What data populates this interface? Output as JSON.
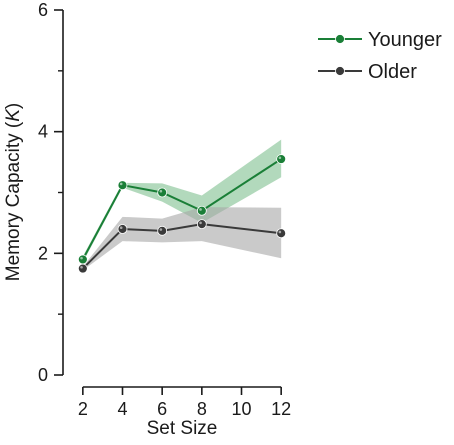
{
  "chart_data": {
    "type": "line",
    "title": "",
    "xlabel": "Set Size",
    "ylabel": "Memory Capacity (K)",
    "ylabel_parts": [
      "Memory Capacity (",
      "K",
      ")"
    ],
    "x": [
      2,
      4,
      6,
      8,
      10,
      12
    ],
    "x_ticks": [
      "2",
      "4",
      "6",
      "8",
      "10",
      "12"
    ],
    "y_ticks": [
      "0",
      "2",
      "4",
      "6"
    ],
    "xlim": [
      1,
      13
    ],
    "ylim": [
      0,
      6
    ],
    "y_minor_ticks": [
      1,
      3,
      5
    ],
    "grid": false,
    "legend_position": "top-right",
    "series": [
      {
        "name": "Younger",
        "color": "#1a7f37",
        "band_color": "#7fbf8f",
        "x": [
          2,
          4,
          6,
          8,
          12
        ],
        "values": [
          1.9,
          3.12,
          3.0,
          2.7,
          3.55
        ],
        "lower": [
          1.85,
          3.08,
          2.85,
          2.5,
          3.25
        ],
        "upper": [
          1.95,
          3.16,
          3.15,
          2.95,
          3.87
        ]
      },
      {
        "name": "Older",
        "color": "#3a3a3a",
        "band_color": "#a6a6a6",
        "x": [
          2,
          4,
          6,
          8,
          12
        ],
        "values": [
          1.75,
          2.4,
          2.37,
          2.48,
          2.33
        ],
        "lower": [
          1.72,
          2.2,
          2.18,
          2.2,
          1.92
        ],
        "upper": [
          1.78,
          2.6,
          2.57,
          2.76,
          2.75
        ]
      }
    ]
  }
}
